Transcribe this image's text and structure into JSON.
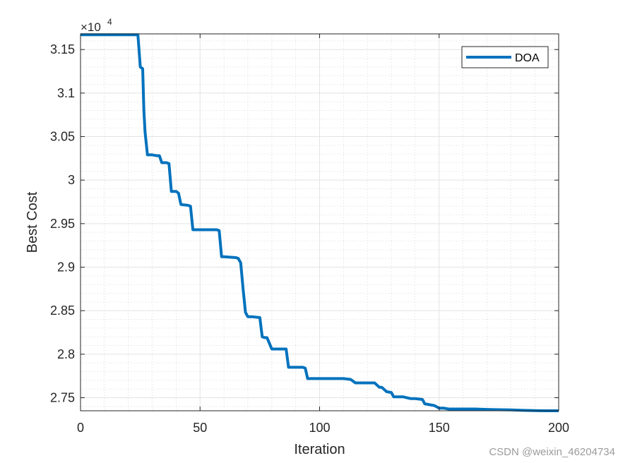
{
  "chart_data": {
    "type": "line",
    "title": "",
    "xlabel": "Iteration",
    "ylabel": "Best Cost",
    "xlim": [
      0,
      200
    ],
    "ylim": [
      27350,
      31680
    ],
    "y_exponent_label": "×10",
    "y_exponent": "4",
    "x_ticks": [
      0,
      50,
      100,
      150,
      200
    ],
    "x_tick_labels": [
      "0",
      "50",
      "100",
      "150",
      "200"
    ],
    "y_ticks": [
      27500,
      28000,
      28500,
      29000,
      29500,
      30000,
      30500,
      31000,
      31500
    ],
    "y_tick_labels": [
      "2.75",
      "2.8",
      "2.85",
      "2.9",
      "2.95",
      "3",
      "3.05",
      "3.1",
      "3.15"
    ],
    "grid": true,
    "minor_grid": true,
    "legend_position": "top-right",
    "colors": {
      "series": "#0072bd",
      "grid": "#e3e3e3",
      "axes": "#262626"
    },
    "series": [
      {
        "name": "DOA",
        "x": [
          0,
          24,
          25,
          26,
          26.5,
          27,
          28,
          30,
          32,
          33,
          34,
          36,
          37,
          38,
          40,
          41,
          42,
          45,
          46,
          47,
          48,
          57,
          58,
          59,
          60,
          65,
          66,
          67,
          68,
          69,
          70,
          71,
          72,
          75,
          76,
          77,
          78,
          80,
          82,
          85,
          86,
          87,
          88,
          90,
          92,
          93,
          94,
          95,
          96,
          110,
          113,
          115,
          118,
          120,
          123,
          125,
          126,
          128,
          130,
          131,
          135,
          138,
          140,
          143,
          144,
          146,
          148,
          150,
          152,
          154,
          155,
          160,
          165,
          170,
          175,
          180,
          185,
          190,
          195,
          200
        ],
        "y": [
          31670,
          31670,
          31300,
          31280,
          30800,
          30550,
          30290,
          30290,
          30280,
          30280,
          30200,
          30200,
          30190,
          29870,
          29870,
          29850,
          29720,
          29710,
          29700,
          29430,
          29430,
          29430,
          29420,
          29120,
          29120,
          29110,
          29100,
          29050,
          28750,
          28480,
          28430,
          28430,
          28430,
          28420,
          28200,
          28190,
          28190,
          28060,
          28060,
          28060,
          28060,
          27850,
          27850,
          27850,
          27850,
          27850,
          27840,
          27720,
          27720,
          27720,
          27710,
          27670,
          27670,
          27670,
          27670,
          27620,
          27620,
          27570,
          27560,
          27510,
          27510,
          27490,
          27490,
          27480,
          27430,
          27420,
          27410,
          27380,
          27380,
          27370,
          27370,
          27370,
          27370,
          27365,
          27362,
          27360,
          27355,
          27352,
          27350,
          27350
        ]
      }
    ]
  },
  "watermark": "CSDN @weixin_46204734"
}
